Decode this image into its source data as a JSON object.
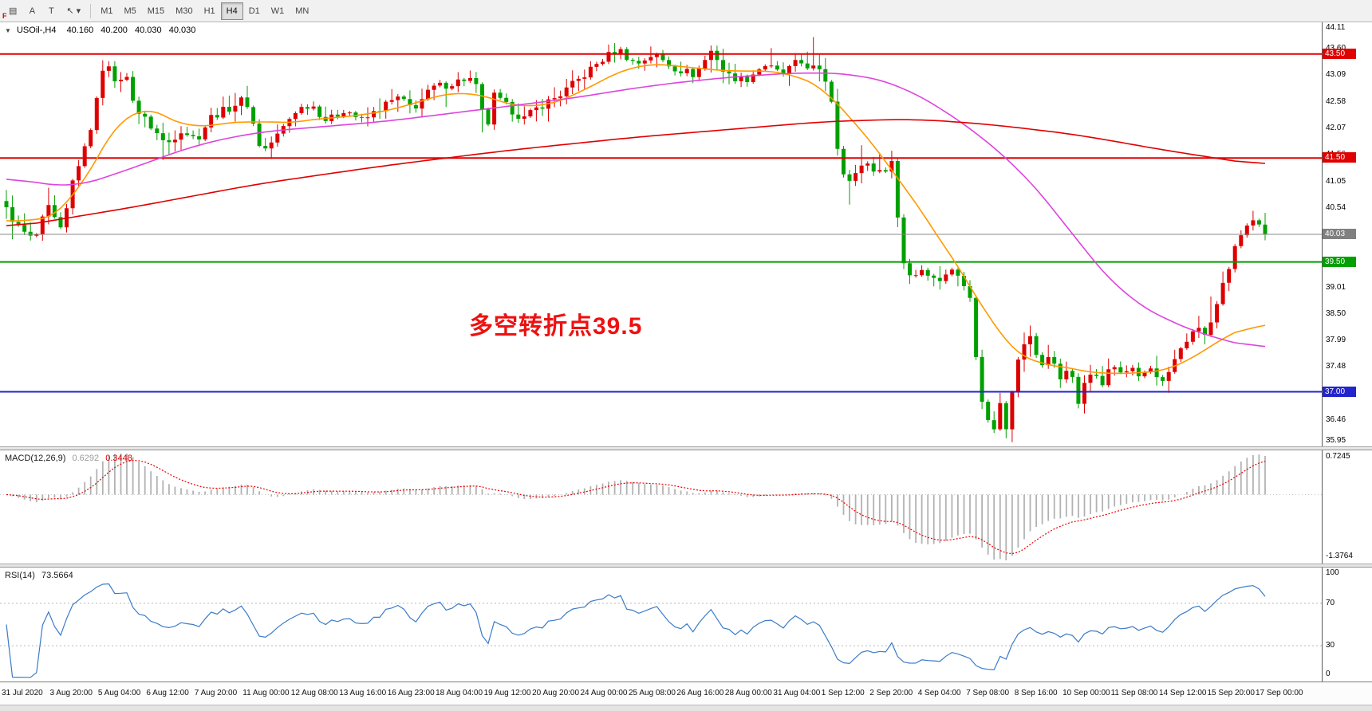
{
  "toolbar": {
    "flag": "F",
    "tools": [
      {
        "name": "chart-grid-button",
        "glyph": "▤"
      },
      {
        "name": "cursor-a-tool-button",
        "glyph": "A"
      },
      {
        "name": "text-tool-button",
        "glyph": "T"
      },
      {
        "name": "draw-objects-dropdown",
        "glyph": "↖",
        "caret": "▾"
      }
    ],
    "timeframes": [
      "M1",
      "M5",
      "M15",
      "M30",
      "H1",
      "H4",
      "D1",
      "W1",
      "MN"
    ],
    "active_timeframe": "H4"
  },
  "chart": {
    "symbol_marker": "▼",
    "title": "USOil-,H4",
    "ohlc": {
      "open": "40.160",
      "high": "40.200",
      "low": "40.030",
      "close": "40.030"
    },
    "price_labels": [
      "44.11",
      "43.60",
      "43.09",
      "42.58",
      "42.07",
      "41.56",
      "41.05",
      "40.54",
      "40.03",
      "39.52",
      "39.01",
      "38.50",
      "37.99",
      "37.48",
      "36.97",
      "36.46",
      "35.95"
    ]
  },
  "macd_panel": {
    "name": "MACD(12,26,9)",
    "value_main": "0.6292",
    "value_signal": "0.3448",
    "axis_max": "0.7245",
    "axis_min": "-1.3764"
  },
  "rsi_panel": {
    "name": "RSI(14)",
    "value": "73.5664",
    "axis_labels": [
      "100",
      "70",
      "30",
      "0"
    ],
    "levels": [
      70,
      30
    ]
  },
  "colors": {
    "up": "#dd0000",
    "down": "#00a000",
    "ma_fast": "#ff9900",
    "ma_mid": "#dd44dd",
    "ma_slow": "#e00000",
    "macd_hist": "#b2b2b2",
    "macd_signal": "#ee0000",
    "rsi_line": "#3b7bc8",
    "level_dashed": "#b8b8b8",
    "current_price_line": "#888888"
  },
  "chart_data": {
    "type": "candlestick",
    "title": "USOil- H4",
    "y_range": [
      35.95,
      44.11
    ],
    "last_price": 40.03,
    "x_labels": [
      "31 Jul 2020",
      "3 Aug 20:00",
      "5 Aug 04:00",
      "6 Aug 12:00",
      "7 Aug 20:00",
      "11 Aug 00:00",
      "12 Aug 08:00",
      "13 Aug 16:00",
      "16 Aug 23:00",
      "18 Aug 04:00",
      "19 Aug 12:00",
      "20 Aug 20:00",
      "24 Aug 00:00",
      "25 Aug 08:00",
      "26 Aug 16:00",
      "28 Aug 00:00",
      "31 Aug 04:00",
      "1 Sep 12:00",
      "2 Sep 20:00",
      "4 Sep 04:00",
      "7 Sep 08:00",
      "8 Sep 16:00",
      "10 Sep 00:00",
      "11 Sep 08:00",
      "14 Sep 12:00",
      "15 Sep 20:00",
      "17 Sep 00:00"
    ],
    "price_path": [
      [
        0.0,
        40.5
      ],
      [
        0.01,
        40.15
      ],
      [
        0.022,
        39.9
      ],
      [
        0.033,
        40.55
      ],
      [
        0.044,
        40.05
      ],
      [
        0.054,
        41.2
      ],
      [
        0.063,
        41.7
      ],
      [
        0.071,
        42.5
      ],
      [
        0.079,
        43.55
      ],
      [
        0.086,
        42.9
      ],
      [
        0.094,
        43.15
      ],
      [
        0.104,
        42.4
      ],
      [
        0.117,
        42.05
      ],
      [
        0.127,
        41.75
      ],
      [
        0.139,
        42.05
      ],
      [
        0.151,
        41.85
      ],
      [
        0.163,
        42.3
      ],
      [
        0.176,
        42.45
      ],
      [
        0.19,
        42.65
      ],
      [
        0.203,
        41.6
      ],
      [
        0.216,
        41.95
      ],
      [
        0.229,
        42.4
      ],
      [
        0.242,
        42.55
      ],
      [
        0.255,
        42.2
      ],
      [
        0.269,
        42.45
      ],
      [
        0.283,
        42.2
      ],
      [
        0.299,
        42.5
      ],
      [
        0.311,
        42.65
      ],
      [
        0.323,
        42.45
      ],
      [
        0.339,
        42.85
      ],
      [
        0.356,
        42.95
      ],
      [
        0.367,
        43.05
      ],
      [
        0.375,
        42.8
      ],
      [
        0.381,
        41.95
      ],
      [
        0.387,
        42.7
      ],
      [
        0.397,
        42.5
      ],
      [
        0.411,
        42.25
      ],
      [
        0.424,
        42.5
      ],
      [
        0.439,
        42.7
      ],
      [
        0.457,
        43.05
      ],
      [
        0.471,
        43.35
      ],
      [
        0.486,
        43.6
      ],
      [
        0.5,
        43.3
      ],
      [
        0.514,
        43.5
      ],
      [
        0.529,
        43.25
      ],
      [
        0.547,
        43.1
      ],
      [
        0.561,
        43.6
      ],
      [
        0.571,
        43.1
      ],
      [
        0.587,
        43.0
      ],
      [
        0.602,
        43.3
      ],
      [
        0.616,
        43.1
      ],
      [
        0.629,
        43.35
      ],
      [
        0.644,
        43.2
      ],
      [
        0.654,
        42.9
      ],
      [
        0.662,
        41.4
      ],
      [
        0.671,
        41.0
      ],
      [
        0.681,
        41.45
      ],
      [
        0.694,
        41.2
      ],
      [
        0.704,
        41.45
      ],
      [
        0.711,
        39.6
      ],
      [
        0.719,
        39.2
      ],
      [
        0.729,
        39.4
      ],
      [
        0.739,
        39.1
      ],
      [
        0.749,
        39.35
      ],
      [
        0.759,
        39.2
      ],
      [
        0.767,
        38.8
      ],
      [
        0.771,
        37.4
      ],
      [
        0.777,
        36.6
      ],
      [
        0.784,
        36.2
      ],
      [
        0.789,
        36.9
      ],
      [
        0.794,
        36.3
      ],
      [
        0.8,
        37.2
      ],
      [
        0.807,
        37.9
      ],
      [
        0.814,
        38.05
      ],
      [
        0.821,
        37.5
      ],
      [
        0.829,
        37.7
      ],
      [
        0.837,
        37.25
      ],
      [
        0.844,
        37.55
      ],
      [
        0.851,
        36.75
      ],
      [
        0.857,
        37.15
      ],
      [
        0.864,
        37.45
      ],
      [
        0.871,
        37.2
      ],
      [
        0.879,
        37.55
      ],
      [
        0.886,
        37.3
      ],
      [
        0.894,
        37.5
      ],
      [
        0.902,
        37.25
      ],
      [
        0.909,
        37.45
      ],
      [
        0.917,
        37.15
      ],
      [
        0.924,
        37.35
      ],
      [
        0.931,
        37.7
      ],
      [
        0.939,
        38.0
      ],
      [
        0.946,
        38.35
      ],
      [
        0.952,
        38.05
      ],
      [
        0.959,
        38.45
      ],
      [
        0.967,
        39.1
      ],
      [
        0.974,
        39.6
      ],
      [
        0.981,
        40.05
      ],
      [
        0.989,
        40.3
      ],
      [
        1.0,
        40.03
      ]
    ],
    "moving_averages": [
      {
        "name": "ma-fast",
        "color": "#ff9900",
        "points": [
          [
            0.0,
            40.4
          ],
          [
            0.02,
            40.2
          ],
          [
            0.05,
            40.45
          ],
          [
            0.08,
            41.9
          ],
          [
            0.1,
            42.7
          ],
          [
            0.12,
            42.35
          ],
          [
            0.15,
            42.0
          ],
          [
            0.19,
            42.3
          ],
          [
            0.21,
            42.1
          ],
          [
            0.24,
            42.25
          ],
          [
            0.28,
            42.3
          ],
          [
            0.32,
            42.5
          ],
          [
            0.36,
            42.85
          ],
          [
            0.39,
            42.6
          ],
          [
            0.42,
            42.4
          ],
          [
            0.46,
            42.8
          ],
          [
            0.5,
            43.35
          ],
          [
            0.54,
            43.25
          ],
          [
            0.58,
            43.15
          ],
          [
            0.62,
            43.2
          ],
          [
            0.66,
            42.7
          ],
          [
            0.69,
            41.6
          ],
          [
            0.71,
            41.2
          ],
          [
            0.73,
            40.3
          ],
          [
            0.75,
            39.6
          ],
          [
            0.77,
            39.0
          ],
          [
            0.79,
            37.9
          ],
          [
            0.81,
            37.5
          ],
          [
            0.83,
            37.6
          ],
          [
            0.85,
            37.4
          ],
          [
            0.87,
            37.3
          ],
          [
            0.89,
            37.4
          ],
          [
            0.91,
            37.35
          ],
          [
            0.93,
            37.4
          ],
          [
            0.95,
            37.8
          ],
          [
            0.97,
            38.1
          ],
          [
            1.0,
            38.4
          ]
        ]
      },
      {
        "name": "ma-mid",
        "color": "#dd44dd",
        "points": [
          [
            0.0,
            41.15
          ],
          [
            0.05,
            40.9
          ],
          [
            0.1,
            41.3
          ],
          [
            0.15,
            41.75
          ],
          [
            0.2,
            42.0
          ],
          [
            0.25,
            42.1
          ],
          [
            0.3,
            42.2
          ],
          [
            0.35,
            42.35
          ],
          [
            0.4,
            42.5
          ],
          [
            0.45,
            42.65
          ],
          [
            0.5,
            42.85
          ],
          [
            0.55,
            43.0
          ],
          [
            0.6,
            43.1
          ],
          [
            0.64,
            43.15
          ],
          [
            0.68,
            43.1
          ],
          [
            0.71,
            42.9
          ],
          [
            0.74,
            42.5
          ],
          [
            0.77,
            42.0
          ],
          [
            0.8,
            41.4
          ],
          [
            0.83,
            40.6
          ],
          [
            0.86,
            39.6
          ],
          [
            0.89,
            38.8
          ],
          [
            0.92,
            38.4
          ],
          [
            0.95,
            38.1
          ],
          [
            1.0,
            37.8
          ]
        ]
      },
      {
        "name": "ma-slow",
        "color": "#e00000",
        "points": [
          [
            0.0,
            40.15
          ],
          [
            0.1,
            40.55
          ],
          [
            0.2,
            41.0
          ],
          [
            0.3,
            41.35
          ],
          [
            0.4,
            41.65
          ],
          [
            0.5,
            41.9
          ],
          [
            0.6,
            42.1
          ],
          [
            0.65,
            42.2
          ],
          [
            0.72,
            42.25
          ],
          [
            0.78,
            42.15
          ],
          [
            0.85,
            41.95
          ],
          [
            0.92,
            41.65
          ],
          [
            1.0,
            41.35
          ]
        ]
      }
    ],
    "horizontal_lines": [
      {
        "price": 43.5,
        "color": "#e00000",
        "width": 2,
        "tag": "43.50",
        "tag_bg": "#e00000"
      },
      {
        "price": 41.5,
        "color": "#e00000",
        "width": 2,
        "tag": "41.50",
        "tag_bg": "#e00000"
      },
      {
        "price": 40.03,
        "color": "#888888",
        "width": 1,
        "tag": "40.03",
        "tag_bg": "#808080"
      },
      {
        "price": 39.5,
        "color": "#00a000",
        "width": 2,
        "tag": "39.50",
        "tag_bg": "#00a000"
      },
      {
        "price": 37.0,
        "color": "#2424cc",
        "width": 2,
        "tag": "37.00",
        "tag_bg": "#2424cc"
      }
    ],
    "annotations": [
      {
        "text": "多空转折点39.5",
        "price": 38.35,
        "color": "#ee1111"
      }
    ],
    "indicators": [
      {
        "type": "MACD",
        "params": [
          12,
          26,
          9
        ],
        "values": {
          "main": 0.6292,
          "signal": 0.3448
        },
        "display_range": [
          -1.3764,
          0.7245
        ]
      },
      {
        "type": "RSI",
        "params": [
          14
        ],
        "value": 73.5664,
        "range": [
          0,
          100
        ],
        "levels": [
          70,
          30
        ]
      }
    ]
  }
}
